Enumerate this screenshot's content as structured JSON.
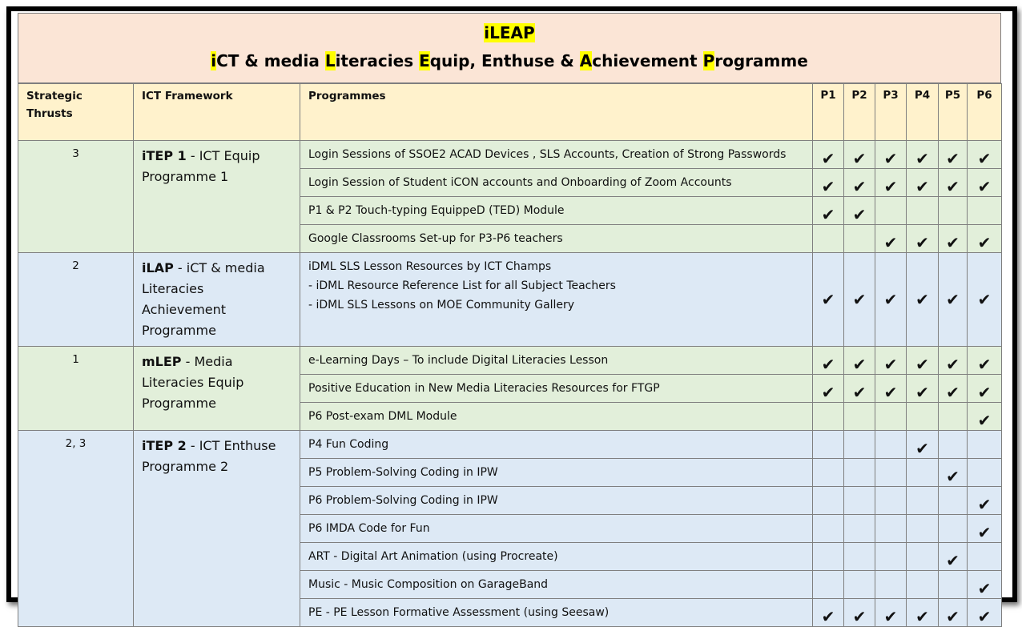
{
  "title": {
    "line1": "iLEAP",
    "line2_parts": [
      {
        "text": "i",
        "hl": true
      },
      {
        "text": "CT & media ",
        "hl": false
      },
      {
        "text": "L",
        "hl": true
      },
      {
        "text": "iteracies ",
        "hl": false
      },
      {
        "text": "E",
        "hl": true
      },
      {
        "text": "quip, Enthuse & ",
        "hl": false
      },
      {
        "text": "A",
        "hl": true
      },
      {
        "text": "chievement ",
        "hl": false
      },
      {
        "text": "P",
        "hl": true
      },
      {
        "text": "rogramme",
        "hl": false
      }
    ]
  },
  "headers": {
    "thrust": "Strategic Thrusts",
    "framework": "ICT Framework",
    "programmes": "Programmes",
    "levels": [
      "P1",
      "P2",
      "P3",
      "P4",
      "P5",
      "P6"
    ]
  },
  "check_glyph": "✔",
  "groups": [
    {
      "color": "green",
      "thrust": "3",
      "framework_bold": "iTEP 1",
      "framework_rest": " - ICT Equip Programme 1",
      "rows": [
        {
          "programme": "Login Sessions of SSOE2 ACAD Devices , SLS Accounts, Creation of Strong Passwords",
          "checks": [
            1,
            1,
            1,
            1,
            1,
            1
          ],
          "h": 33
        },
        {
          "programme": "Login Session of Student iCON accounts and Onboarding of Zoom Accounts",
          "checks": [
            1,
            1,
            1,
            1,
            1,
            1
          ],
          "h": 33
        },
        {
          "programme": "P1 & P2 Touch-typing EquippeD (TED) Module",
          "checks": [
            1,
            1,
            0,
            0,
            0,
            0
          ],
          "h": 33
        },
        {
          "programme": "Google Classrooms Set-up for P3-P6 teachers",
          "checks": [
            0,
            0,
            1,
            1,
            1,
            1
          ],
          "h": 33
        }
      ]
    },
    {
      "color": "blue",
      "thrust": "2",
      "framework_bold": "iLAP",
      "framework_rest": " - iCT & media Literacies Achievement Programme",
      "rows": [
        {
          "programme_lines": [
            "iDML SLS Lesson Resources by ICT Champs",
            "- iDML Resource Reference List for all Subject Teachers",
            "- iDML SLS Lessons on MOE Community Gallery"
          ],
          "checks": [
            1,
            1,
            1,
            1,
            1,
            1
          ],
          "h": 107,
          "mid": true
        }
      ]
    },
    {
      "color": "green",
      "thrust": "1",
      "framework_bold": "mLEP",
      "framework_rest": " - Media Literacies Equip Programme",
      "rows": [
        {
          "programme": "e-Learning Days – To include Digital Literacies Lesson",
          "checks": [
            1,
            1,
            1,
            1,
            1,
            1
          ],
          "h": 33
        },
        {
          "programme": "Positive Education in New Media Literacies Resources for FTGP",
          "checks": [
            1,
            1,
            1,
            1,
            1,
            1
          ],
          "h": 33
        },
        {
          "programme": "P6 Post-exam DML Module",
          "checks": [
            0,
            0,
            0,
            0,
            0,
            1
          ],
          "h": 33
        }
      ]
    },
    {
      "color": "blue",
      "thrust": "2, 3",
      "framework_bold": "iTEP 2",
      "framework_rest": " - ICT Enthuse Programme 2",
      "rows": [
        {
          "programme": "P4 Fun Coding",
          "checks": [
            0,
            0,
            0,
            1,
            0,
            0
          ],
          "h": 33
        },
        {
          "programme": "P5 Problem-Solving Coding in IPW",
          "checks": [
            0,
            0,
            0,
            0,
            1,
            0
          ],
          "h": 33
        },
        {
          "programme": "P6 Problem-Solving Coding in IPW",
          "checks": [
            0,
            0,
            0,
            0,
            0,
            1
          ],
          "h": 33
        },
        {
          "programme": "P6 IMDA Code for Fun",
          "checks": [
            0,
            0,
            0,
            0,
            0,
            1
          ],
          "h": 33
        },
        {
          "programme": "ART - Digital Art Animation (using Procreate)",
          "checks": [
            0,
            0,
            0,
            0,
            1,
            0
          ],
          "h": 33
        },
        {
          "programme": "Music - Music Composition on GarageBand",
          "checks": [
            0,
            0,
            0,
            0,
            0,
            1
          ],
          "h": 33
        },
        {
          "programme": "PE - PE Lesson Formative Assessment (using Seesaw)",
          "checks": [
            1,
            1,
            1,
            1,
            1,
            1
          ],
          "h": 33
        }
      ]
    }
  ]
}
